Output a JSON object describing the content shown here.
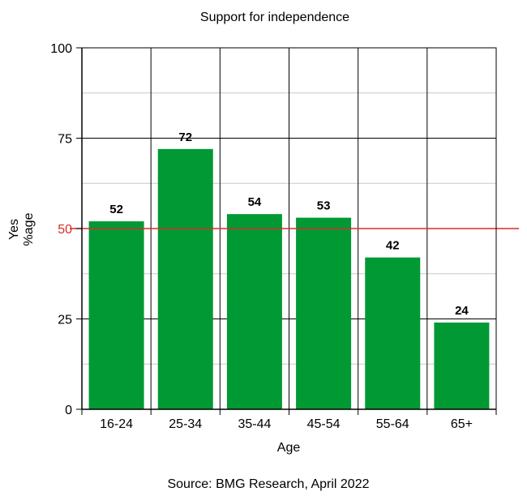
{
  "chart_data": {
    "type": "bar",
    "title": "Support for independence",
    "xlabel": "Age",
    "ylabel": [
      "Yes",
      "%age"
    ],
    "categories": [
      "16-24",
      "25-34",
      "35-44",
      "45-54",
      "55-64",
      "65+"
    ],
    "values": [
      52,
      72,
      54,
      53,
      42,
      24
    ],
    "data_labels": [
      "52",
      "72",
      "54",
      "53",
      "42",
      "24"
    ],
    "ylim": [
      0,
      100
    ],
    "yticks": [
      0,
      25,
      50,
      75,
      100
    ],
    "ytick_labels": [
      "0",
      "25",
      "50",
      "75",
      "100"
    ],
    "grid": true,
    "reference_line": {
      "value": 50,
      "color": "#d92b2b"
    },
    "bar_color": "#009933",
    "source": "Source: BMG Research, April 2022"
  }
}
